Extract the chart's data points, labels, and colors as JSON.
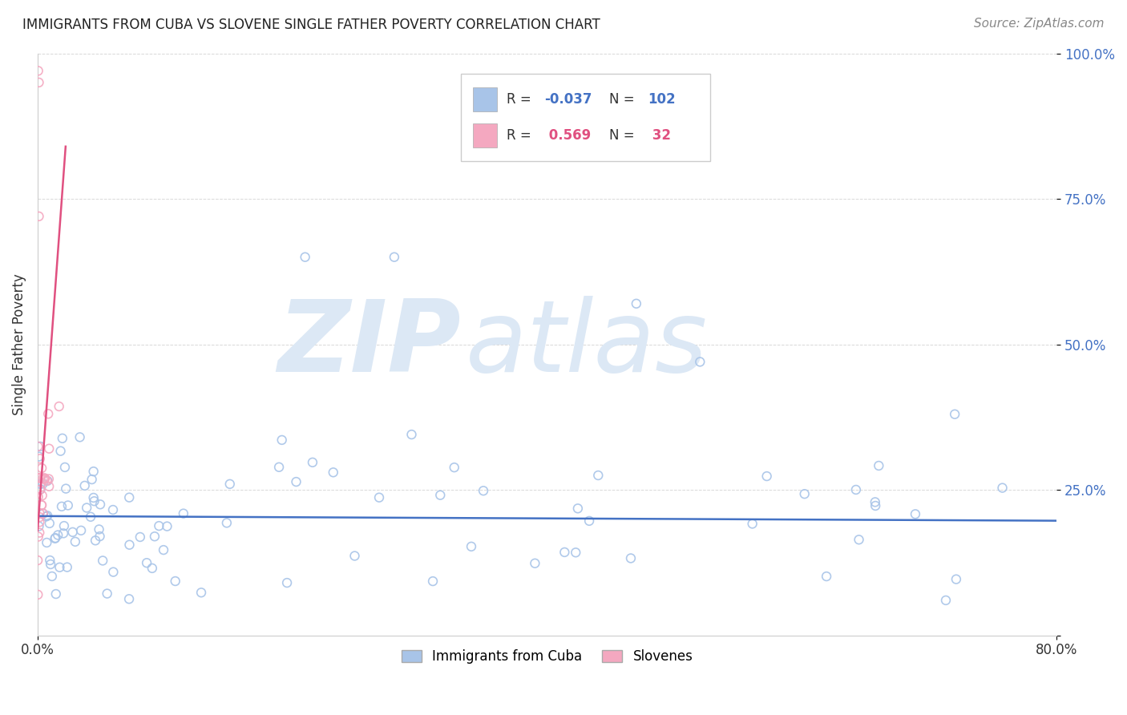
{
  "title": "IMMIGRANTS FROM CUBA VS SLOVENE SINGLE FATHER POVERTY CORRELATION CHART",
  "source": "Source: ZipAtlas.com",
  "ylabel": "Single Father Poverty",
  "legend_label1": "Immigrants from Cuba",
  "legend_label2": "Slovenes",
  "R1": -0.037,
  "N1": 102,
  "R2": 0.569,
  "N2": 32,
  "color1": "#a8c4e8",
  "color2": "#f4a8c0",
  "trendline1_color": "#4472c4",
  "trendline2_color": "#e05080",
  "xlim": [
    0.0,
    0.8
  ],
  "ylim": [
    0.0,
    1.0
  ],
  "background_color": "#ffffff",
  "watermark_zip": "ZIP",
  "watermark_atlas": "atlas",
  "watermark_color": "#dce8f5",
  "grid_color": "#d8d8d8",
  "right_tick_color": "#4472c4"
}
